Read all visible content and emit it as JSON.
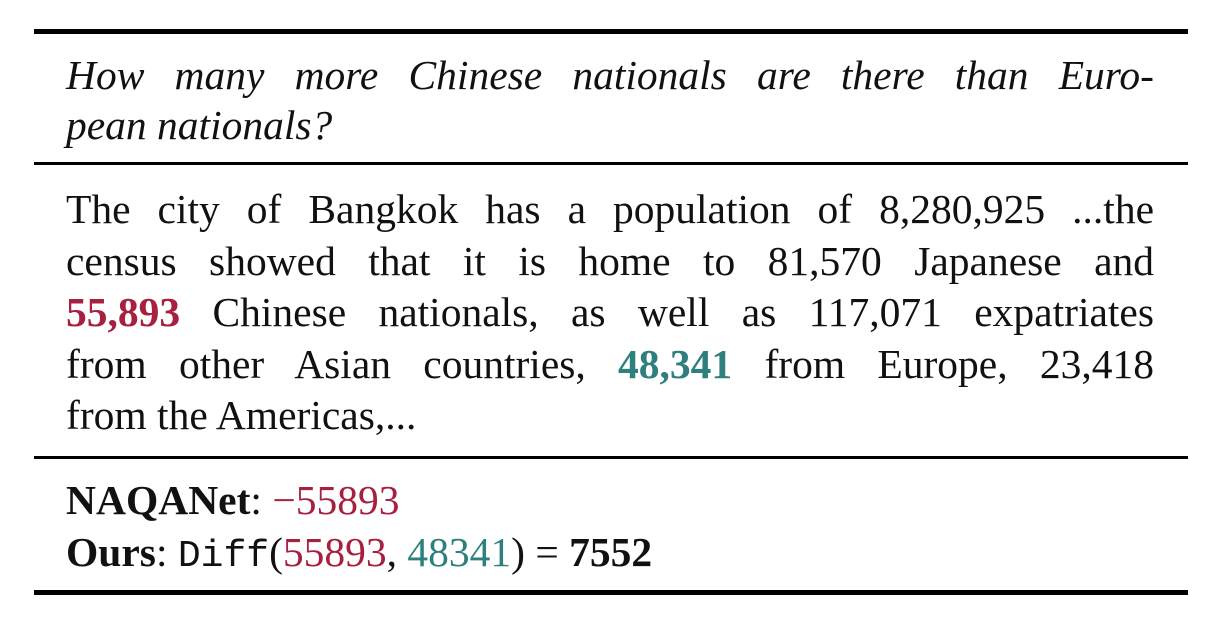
{
  "question": {
    "line1": "How many more Chinese nationals are there than Euro-",
    "line2": "pean nationals?"
  },
  "passage": {
    "l1": "The city of Bangkok has a population of 8,280,925 ...the",
    "l2": "census showed that it is home to 81,570 Japanese and",
    "l3_num": "55,893",
    "l3_rest": " Chinese nationals, as well as 117,071 expatriates",
    "l4_pre": "from other Asian countries, ",
    "l4_num": "48,341",
    "l4_post": " from Europe, 23,418",
    "l5": "from the Americas,..."
  },
  "answers": {
    "naqanet": {
      "label": "NAQANet",
      "sep": ": ",
      "value": "−55893"
    },
    "ours": {
      "label": "Ours",
      "sep": ": ",
      "func": "Diff",
      "open": "(",
      "arg1": "55893",
      "comma": ", ",
      "arg2": "48341",
      "close": ") = ",
      "result": "7552"
    }
  },
  "colors": {
    "chinese_highlight": "#a8203f",
    "europe_highlight": "#2e7f7d"
  }
}
